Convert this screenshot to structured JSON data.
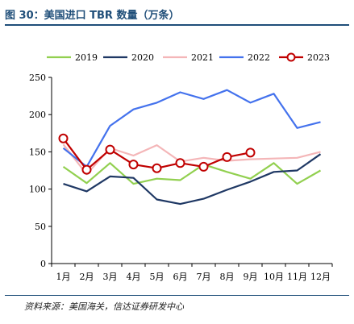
{
  "title": "图 30：美国进口 TBR 数量（万条）",
  "source": "资料来源：美国海关，信达证券研发中心",
  "chart_data": {
    "type": "line",
    "categories": [
      "1月",
      "2月",
      "3月",
      "4月",
      "5月",
      "6月",
      "7月",
      "8月",
      "9月",
      "10月",
      "11月",
      "12月"
    ],
    "ylim": [
      0,
      250
    ],
    "yticks": [
      0,
      50,
      100,
      150,
      200,
      250
    ],
    "grid": false,
    "legend_position": "top",
    "series": [
      {
        "name": "2019",
        "color": "#92d050",
        "marker": false,
        "values": [
          130,
          108,
          135,
          107,
          114,
          112,
          133,
          123,
          114,
          135,
          107,
          125
        ]
      },
      {
        "name": "2020",
        "color": "#1f3864",
        "marker": false,
        "values": [
          107,
          97,
          117,
          115,
          86,
          80,
          87,
          99,
          110,
          123,
          125,
          147
        ]
      },
      {
        "name": "2021",
        "color": "#f4b6b8",
        "marker": false,
        "values": [
          160,
          120,
          155,
          145,
          159,
          137,
          142,
          138,
          140,
          141,
          142,
          150
        ]
      },
      {
        "name": "2022",
        "color": "#4472ed",
        "marker": false,
        "values": [
          155,
          130,
          185,
          207,
          216,
          230,
          221,
          233,
          216,
          228,
          182,
          190
        ]
      },
      {
        "name": "2023",
        "color": "#c00000",
        "marker": true,
        "values": [
          168,
          126,
          153,
          133,
          128,
          135,
          130,
          143,
          149,
          null,
          null,
          null
        ]
      }
    ]
  }
}
